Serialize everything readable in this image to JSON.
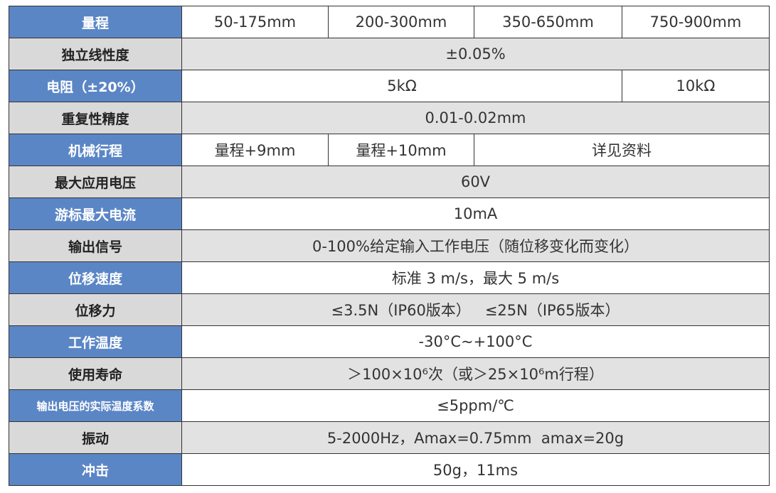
{
  "table": {
    "rows": [
      {
        "label": "量程",
        "cells": [
          "50-175mm",
          "200-300mm",
          "350-650mm",
          "750-900mm"
        ]
      },
      {
        "label": "独立线性度",
        "cells": [
          "±0.05%"
        ]
      },
      {
        "label": "电阻（±20%）",
        "cells": [
          "5kΩ",
          "10kΩ"
        ]
      },
      {
        "label": "重复性精度",
        "cells": [
          "0.01-0.02mm"
        ]
      },
      {
        "label": "机械行程",
        "cells": [
          "量程+9mm",
          "量程+10mm",
          "详见资料"
        ]
      },
      {
        "label": "最大应用电压",
        "cells": [
          "60V"
        ]
      },
      {
        "label": "游标最大电流",
        "cells": [
          "10mA"
        ]
      },
      {
        "label": "输出信号",
        "cells": [
          "0-100%给定输入工作电压（随位移变化而变化）"
        ]
      },
      {
        "label": "位移速度",
        "cells": [
          "标准 3 m/s，最大 5 m/s"
        ]
      },
      {
        "label": "位移力",
        "cells": [
          "≤3.5N（IP60版本）   ≤25N（IP65版本）"
        ]
      },
      {
        "label": "工作温度",
        "cells": [
          "-30°C~+100°C"
        ]
      },
      {
        "label": "使用寿命",
        "cells": [
          "＞100×10⁶次（或＞25×10⁶m行程）"
        ]
      },
      {
        "label": "输出电压的实际温度系数",
        "cells": [
          "≤5ppm/℃"
        ]
      },
      {
        "label": "振动",
        "cells": [
          "5-2000Hz，Amax=0.75mm  amax=20g"
        ]
      },
      {
        "label": "冲击",
        "cells": [
          "50g，11ms"
        ]
      }
    ]
  }
}
